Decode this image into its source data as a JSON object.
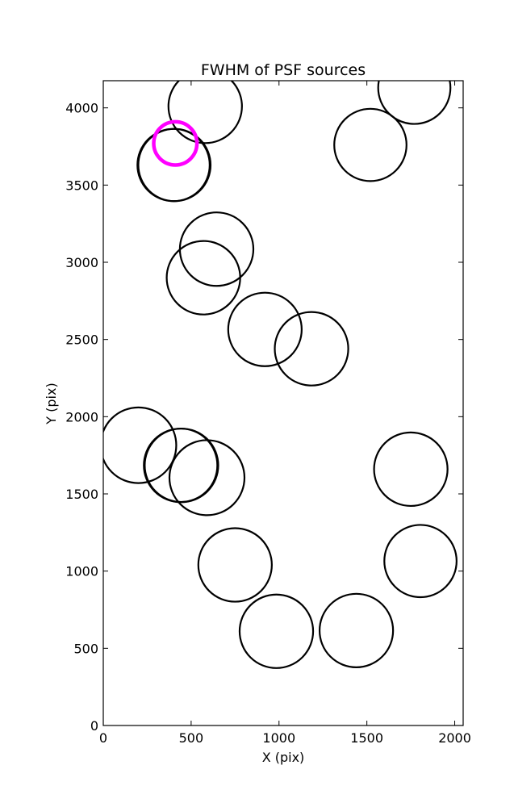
{
  "chart_data": {
    "type": "scatter",
    "title": "FWHM of PSF sources",
    "xlabel": "X (pix)",
    "ylabel": "Y (pix)",
    "xlim": [
      0,
      2048
    ],
    "ylim": [
      0,
      4176
    ],
    "xticks": [
      0,
      500,
      1000,
      1500,
      2000
    ],
    "yticks": [
      0,
      500,
      1000,
      1500,
      2000,
      2500,
      3000,
      3500,
      4000
    ],
    "grid": false,
    "marker": "open circle, radius = FWHM (scaled)",
    "colors": {
      "default": "#000000",
      "highlight": "#ff00ff"
    },
    "sources": [
      {
        "x": 580,
        "y": 4010,
        "r": 238,
        "highlight": false
      },
      {
        "x": 1770,
        "y": 4130,
        "r": 234,
        "highlight": false
      },
      {
        "x": 1520,
        "y": 3760,
        "r": 234,
        "highlight": false
      },
      {
        "x": 400,
        "y": 3630,
        "r": 234,
        "highlight": false
      },
      {
        "x": 405,
        "y": 3630,
        "r": 234,
        "highlight": false
      },
      {
        "x": 410,
        "y": 3770,
        "r": 140,
        "highlight": true
      },
      {
        "x": 645,
        "y": 3085,
        "r": 238,
        "highlight": false
      },
      {
        "x": 570,
        "y": 2900,
        "r": 238,
        "highlight": false
      },
      {
        "x": 920,
        "y": 2565,
        "r": 238,
        "highlight": false
      },
      {
        "x": 1185,
        "y": 2440,
        "r": 238,
        "highlight": false
      },
      {
        "x": 200,
        "y": 1815,
        "r": 245,
        "highlight": false
      },
      {
        "x": 440,
        "y": 1685,
        "r": 238,
        "highlight": false
      },
      {
        "x": 445,
        "y": 1685,
        "r": 238,
        "highlight": false
      },
      {
        "x": 590,
        "y": 1605,
        "r": 243,
        "highlight": false
      },
      {
        "x": 1750,
        "y": 1660,
        "r": 238,
        "highlight": false
      },
      {
        "x": 750,
        "y": 1040,
        "r": 238,
        "highlight": false
      },
      {
        "x": 1805,
        "y": 1065,
        "r": 234,
        "highlight": false
      },
      {
        "x": 985,
        "y": 610,
        "r": 238,
        "highlight": false
      },
      {
        "x": 1440,
        "y": 615,
        "r": 238,
        "highlight": false
      }
    ]
  }
}
